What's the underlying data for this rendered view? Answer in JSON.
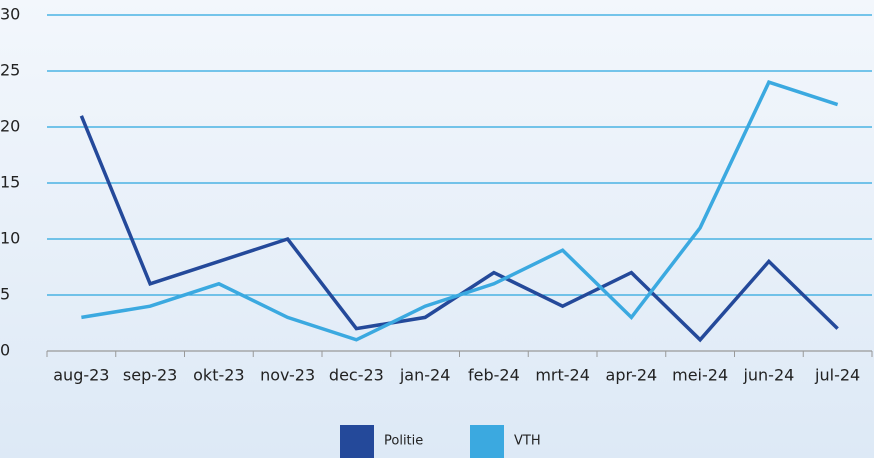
{
  "chart_data": {
    "type": "line",
    "categories": [
      "aug-23",
      "sep-23",
      "okt-23",
      "nov-23",
      "dec-23",
      "jan-24",
      "feb-24",
      "mrt-24",
      "apr-24",
      "mei-24",
      "jun-24",
      "jul-24"
    ],
    "series": [
      {
        "name": "Politie",
        "color": "#24499a",
        "values": [
          21,
          6,
          8,
          10,
          2,
          3,
          7,
          4,
          7,
          1,
          8,
          2
        ]
      },
      {
        "name": "VTH",
        "color": "#3ba9e0",
        "values": [
          3,
          4,
          6,
          3,
          1,
          4,
          6,
          9,
          3,
          11,
          24,
          22
        ]
      }
    ],
    "ylim": [
      0,
      30
    ],
    "yticks": [
      0,
      5,
      10,
      15,
      20,
      25,
      30
    ],
    "grid": true,
    "legend": "bottom"
  }
}
